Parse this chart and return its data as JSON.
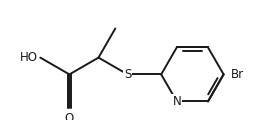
{
  "bg_color": "#ffffff",
  "bond_color": "#1a1a1a",
  "text_color": "#1a1a1a",
  "line_width": 1.4,
  "font_size": 8.5,
  "figsize": [
    2.69,
    1.2
  ],
  "dpi": 100,
  "xlim": [
    0.0,
    1.0
  ],
  "ylim": [
    0.0,
    1.0
  ]
}
